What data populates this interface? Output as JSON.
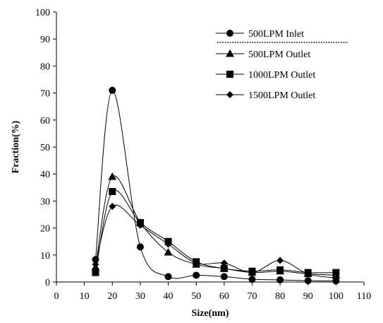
{
  "chart_data": {
    "type": "line",
    "xlabel": "Size(nm)",
    "ylabel": "Fraction(%)",
    "xlim": [
      0,
      110
    ],
    "ylim": [
      0,
      100
    ],
    "xticks": [
      0,
      10,
      20,
      30,
      40,
      50,
      60,
      70,
      80,
      90,
      100,
      110
    ],
    "yticks": [
      0,
      10,
      20,
      30,
      40,
      50,
      60,
      70,
      80,
      90,
      100
    ],
    "x": [
      14,
      20,
      30,
      40,
      50,
      60,
      70,
      80,
      90,
      100
    ],
    "grid": false,
    "legend_position": "top-right",
    "series": [
      {
        "name": "500LPM Inlet",
        "marker": "circle",
        "values": [
          8.3,
          71.0,
          13.0,
          2.0,
          2.5,
          2.0,
          1.0,
          0.8,
          0.5,
          0.4
        ]
      },
      {
        "name": "500LPM Outlet",
        "marker": "triangle",
        "values": [
          5.5,
          39.0,
          22.0,
          11.0,
          6.5,
          5.0,
          3.5,
          4.0,
          3.0,
          2.5
        ]
      },
      {
        "name": "1000LPM Outlet",
        "marker": "square",
        "values": [
          3.5,
          33.5,
          22.0,
          15.0,
          7.5,
          5.0,
          4.0,
          4.5,
          3.5,
          3.5
        ]
      },
      {
        "name": "1500LPM Outlet",
        "marker": "diamond",
        "values": [
          6.5,
          28.0,
          21.0,
          14.0,
          7.0,
          7.0,
          3.5,
          8.0,
          3.0,
          1.5
        ]
      }
    ]
  }
}
